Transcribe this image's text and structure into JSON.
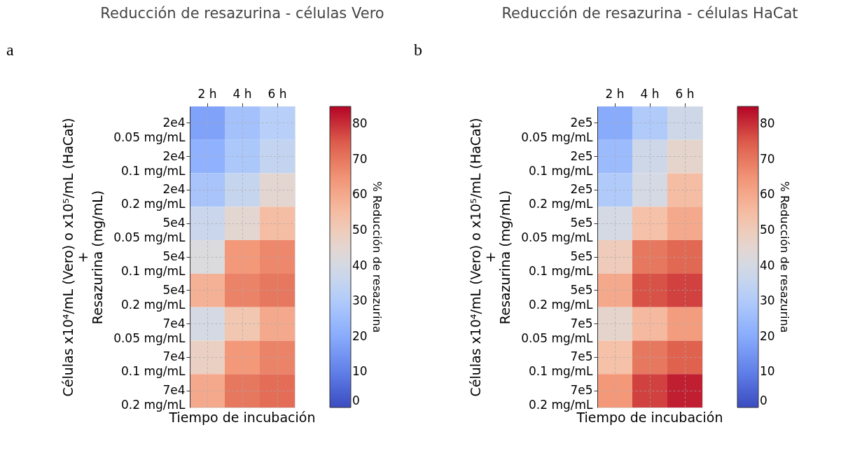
{
  "chart_data": [
    {
      "type": "heatmap",
      "title": "Reducción de resazurina - células Vero",
      "xlabel": "Tiempo de incubación",
      "ylabel": "Células x10⁴/mL (Vero) o x10⁵/mL (HaCat)\n+\nResazurina (mg/mL)",
      "clabel": "% Reducción de resazurina",
      "annotations": [
        "a"
      ],
      "categories": [
        "2 h",
        "4 h",
        "6 h"
      ],
      "y_categories": [
        "2e4\n0.05 mg/mL",
        "2e4\n0.1 mg/mL",
        "2e4\n0.2 mg/mL",
        "5e4\n0.05 mg/mL",
        "5e4\n0.1 mg/mL",
        "5e4\n0.2 mg/mL",
        "7e4\n0.05 mg/mL",
        "7e4\n0.1 mg/mL",
        "7e4\n0.2 mg/mL"
      ],
      "cells": [
        [
          18,
          27,
          32
        ],
        [
          22,
          29,
          35
        ],
        [
          28,
          36,
          45
        ],
        [
          37,
          45,
          55
        ],
        [
          42,
          64,
          67
        ],
        [
          58,
          68,
          70
        ],
        [
          40,
          52,
          60
        ],
        [
          48,
          64,
          68
        ],
        [
          60,
          70,
          72
        ]
      ],
      "clim": [
        0,
        85
      ],
      "cticks": [
        0,
        10,
        20,
        30,
        40,
        50,
        60,
        70,
        80
      ],
      "grid": true
    },
    {
      "type": "heatmap",
      "title": "Reducción de resazurina - células HaCat",
      "xlabel": "Tiempo de incubación",
      "ylabel": "Células x10⁴/mL (Vero) o x10⁵/mL (HaCat)\n+\nResazurina (mg/mL)",
      "clabel": "% Reducción de resazurina",
      "annotations": [
        "b"
      ],
      "categories": [
        "2 h",
        "4 h",
        "6 h"
      ],
      "y_categories": [
        "2e5\n0.05 mg/mL",
        "2e5\n0.1 mg/mL",
        "2e5\n0.2 mg/mL",
        "5e5\n0.05 mg/mL",
        "5e5\n0.1 mg/mL",
        "5e5\n0.2 mg/mL",
        "7e5\n0.05 mg/mL",
        "7e5\n0.1 mg/mL",
        "7e5\n0.2 mg/mL"
      ],
      "cells": [
        [
          20,
          30,
          38
        ],
        [
          25,
          38,
          46
        ],
        [
          30,
          40,
          55
        ],
        [
          40,
          54,
          60
        ],
        [
          50,
          70,
          73
        ],
        [
          60,
          76,
          78
        ],
        [
          46,
          56,
          63
        ],
        [
          54,
          70,
          74
        ],
        [
          64,
          78,
          82
        ]
      ],
      "clim": [
        0,
        85
      ],
      "cticks": [
        0,
        10,
        20,
        30,
        40,
        50,
        60,
        70,
        80
      ],
      "grid": true
    }
  ]
}
